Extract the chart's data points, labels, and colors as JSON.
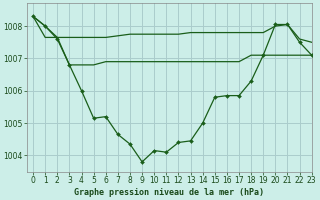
{
  "title": "Graphe pression niveau de la mer (hPa)",
  "bg_color": "#cceee8",
  "grid_color": "#aacccc",
  "line_color": "#1a5e1a",
  "xlim": [
    -0.5,
    23
  ],
  "ylim": [
    1003.5,
    1008.7
  ],
  "yticks": [
    1004,
    1005,
    1006,
    1007,
    1008
  ],
  "xticks": [
    0,
    1,
    2,
    3,
    4,
    5,
    6,
    7,
    8,
    9,
    10,
    11,
    12,
    13,
    14,
    15,
    16,
    17,
    18,
    19,
    20,
    21,
    22,
    23
  ],
  "series1": [
    1008.3,
    1008.0,
    1007.65,
    1007.65,
    1007.65,
    1007.65,
    1007.65,
    1007.7,
    1007.75,
    1007.75,
    1007.75,
    1007.75,
    1007.75,
    1007.8,
    1007.8,
    1007.8,
    1007.8,
    1007.8,
    1007.8,
    1007.8,
    1008.0,
    1008.05,
    1007.6,
    1007.5
  ],
  "series2": [
    1008.3,
    1007.65,
    1007.65,
    1006.8,
    1006.8,
    1006.8,
    1006.9,
    1006.9,
    1006.9,
    1006.9,
    1006.9,
    1006.9,
    1006.9,
    1006.9,
    1006.9,
    1006.9,
    1006.9,
    1006.9,
    1007.1,
    1007.1,
    1007.1,
    1007.1,
    1007.1,
    1007.1
  ],
  "series3": [
    1008.3,
    1008.0,
    1007.6,
    1006.8,
    1006.0,
    1005.15,
    1005.2,
    1004.65,
    1004.35,
    1003.8,
    1004.15,
    1004.1,
    1004.4,
    1004.45,
    1005.0,
    1005.8,
    1005.85,
    1005.85,
    1006.3,
    1007.1,
    1008.05,
    1008.05,
    1007.5,
    1007.1
  ]
}
